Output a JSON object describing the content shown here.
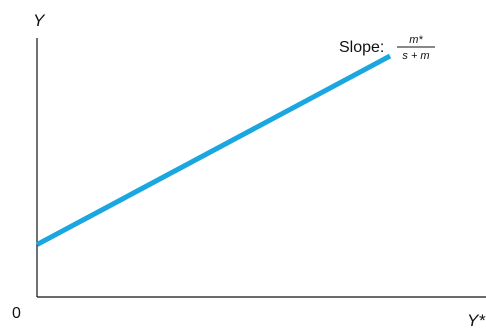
{
  "chart_data": {
    "type": "line",
    "xlabel": "Y*",
    "ylabel": "Y",
    "origin_label": "0",
    "x": [
      0,
      100
    ],
    "series": [
      {
        "values": [
          20,
          92
        ]
      }
    ],
    "xlim": [
      0,
      100
    ],
    "ylim": [
      0,
      100
    ],
    "grid": false,
    "annotation": {
      "prefix": "Slope:",
      "numerator": "m*",
      "denominator": "s + m"
    },
    "line_color": "#1aa6e0",
    "axis_color": "#111111"
  }
}
